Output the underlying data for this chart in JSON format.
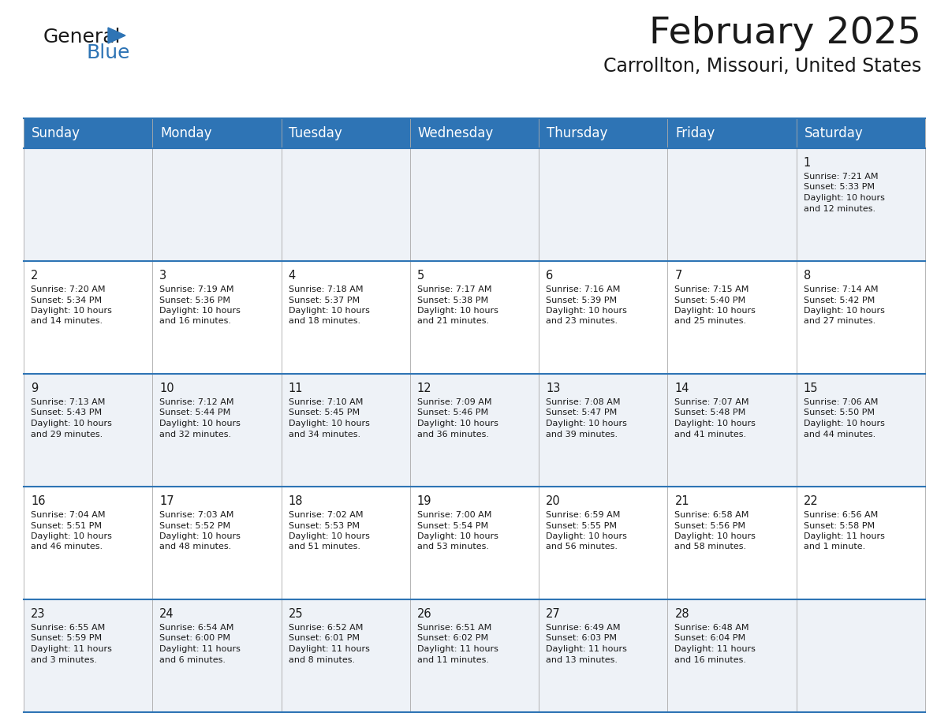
{
  "title": "February 2025",
  "subtitle": "Carrollton, Missouri, United States",
  "header_bg": "#2E74B5",
  "header_text_color": "#FFFFFF",
  "row_bg_odd": "#FFFFFF",
  "row_bg_even": "#EEF2F7",
  "border_color_dark": "#2E74B5",
  "border_color_light": "#AAAAAA",
  "text_color": "#1a1a1a",
  "logo_general_color": "#1a1a1a",
  "logo_blue_color": "#2E74B5",
  "day_headers": [
    "Sunday",
    "Monday",
    "Tuesday",
    "Wednesday",
    "Thursday",
    "Friday",
    "Saturday"
  ],
  "title_fontsize": 34,
  "subtitle_fontsize": 17,
  "header_fontsize": 12,
  "day_num_fontsize": 10.5,
  "cell_fontsize": 8.0,
  "days": [
    {
      "date": 1,
      "col": 6,
      "row": 0,
      "sunrise": "7:21 AM",
      "sunset": "5:33 PM",
      "daylight_h": "10 hours",
      "daylight_m": "and 12 minutes."
    },
    {
      "date": 2,
      "col": 0,
      "row": 1,
      "sunrise": "7:20 AM",
      "sunset": "5:34 PM",
      "daylight_h": "10 hours",
      "daylight_m": "and 14 minutes."
    },
    {
      "date": 3,
      "col": 1,
      "row": 1,
      "sunrise": "7:19 AM",
      "sunset": "5:36 PM",
      "daylight_h": "10 hours",
      "daylight_m": "and 16 minutes."
    },
    {
      "date": 4,
      "col": 2,
      "row": 1,
      "sunrise": "7:18 AM",
      "sunset": "5:37 PM",
      "daylight_h": "10 hours",
      "daylight_m": "and 18 minutes."
    },
    {
      "date": 5,
      "col": 3,
      "row": 1,
      "sunrise": "7:17 AM",
      "sunset": "5:38 PM",
      "daylight_h": "10 hours",
      "daylight_m": "and 21 minutes."
    },
    {
      "date": 6,
      "col": 4,
      "row": 1,
      "sunrise": "7:16 AM",
      "sunset": "5:39 PM",
      "daylight_h": "10 hours",
      "daylight_m": "and 23 minutes."
    },
    {
      "date": 7,
      "col": 5,
      "row": 1,
      "sunrise": "7:15 AM",
      "sunset": "5:40 PM",
      "daylight_h": "10 hours",
      "daylight_m": "and 25 minutes."
    },
    {
      "date": 8,
      "col": 6,
      "row": 1,
      "sunrise": "7:14 AM",
      "sunset": "5:42 PM",
      "daylight_h": "10 hours",
      "daylight_m": "and 27 minutes."
    },
    {
      "date": 9,
      "col": 0,
      "row": 2,
      "sunrise": "7:13 AM",
      "sunset": "5:43 PM",
      "daylight_h": "10 hours",
      "daylight_m": "and 29 minutes."
    },
    {
      "date": 10,
      "col": 1,
      "row": 2,
      "sunrise": "7:12 AM",
      "sunset": "5:44 PM",
      "daylight_h": "10 hours",
      "daylight_m": "and 32 minutes."
    },
    {
      "date": 11,
      "col": 2,
      "row": 2,
      "sunrise": "7:10 AM",
      "sunset": "5:45 PM",
      "daylight_h": "10 hours",
      "daylight_m": "and 34 minutes."
    },
    {
      "date": 12,
      "col": 3,
      "row": 2,
      "sunrise": "7:09 AM",
      "sunset": "5:46 PM",
      "daylight_h": "10 hours",
      "daylight_m": "and 36 minutes."
    },
    {
      "date": 13,
      "col": 4,
      "row": 2,
      "sunrise": "7:08 AM",
      "sunset": "5:47 PM",
      "daylight_h": "10 hours",
      "daylight_m": "and 39 minutes."
    },
    {
      "date": 14,
      "col": 5,
      "row": 2,
      "sunrise": "7:07 AM",
      "sunset": "5:48 PM",
      "daylight_h": "10 hours",
      "daylight_m": "and 41 minutes."
    },
    {
      "date": 15,
      "col": 6,
      "row": 2,
      "sunrise": "7:06 AM",
      "sunset": "5:50 PM",
      "daylight_h": "10 hours",
      "daylight_m": "and 44 minutes."
    },
    {
      "date": 16,
      "col": 0,
      "row": 3,
      "sunrise": "7:04 AM",
      "sunset": "5:51 PM",
      "daylight_h": "10 hours",
      "daylight_m": "and 46 minutes."
    },
    {
      "date": 17,
      "col": 1,
      "row": 3,
      "sunrise": "7:03 AM",
      "sunset": "5:52 PM",
      "daylight_h": "10 hours",
      "daylight_m": "and 48 minutes."
    },
    {
      "date": 18,
      "col": 2,
      "row": 3,
      "sunrise": "7:02 AM",
      "sunset": "5:53 PM",
      "daylight_h": "10 hours",
      "daylight_m": "and 51 minutes."
    },
    {
      "date": 19,
      "col": 3,
      "row": 3,
      "sunrise": "7:00 AM",
      "sunset": "5:54 PM",
      "daylight_h": "10 hours",
      "daylight_m": "and 53 minutes."
    },
    {
      "date": 20,
      "col": 4,
      "row": 3,
      "sunrise": "6:59 AM",
      "sunset": "5:55 PM",
      "daylight_h": "10 hours",
      "daylight_m": "and 56 minutes."
    },
    {
      "date": 21,
      "col": 5,
      "row": 3,
      "sunrise": "6:58 AM",
      "sunset": "5:56 PM",
      "daylight_h": "10 hours",
      "daylight_m": "and 58 minutes."
    },
    {
      "date": 22,
      "col": 6,
      "row": 3,
      "sunrise": "6:56 AM",
      "sunset": "5:58 PM",
      "daylight_h": "11 hours",
      "daylight_m": "and 1 minute."
    },
    {
      "date": 23,
      "col": 0,
      "row": 4,
      "sunrise": "6:55 AM",
      "sunset": "5:59 PM",
      "daylight_h": "11 hours",
      "daylight_m": "and 3 minutes."
    },
    {
      "date": 24,
      "col": 1,
      "row": 4,
      "sunrise": "6:54 AM",
      "sunset": "6:00 PM",
      "daylight_h": "11 hours",
      "daylight_m": "and 6 minutes."
    },
    {
      "date": 25,
      "col": 2,
      "row": 4,
      "sunrise": "6:52 AM",
      "sunset": "6:01 PM",
      "daylight_h": "11 hours",
      "daylight_m": "and 8 minutes."
    },
    {
      "date": 26,
      "col": 3,
      "row": 4,
      "sunrise": "6:51 AM",
      "sunset": "6:02 PM",
      "daylight_h": "11 hours",
      "daylight_m": "and 11 minutes."
    },
    {
      "date": 27,
      "col": 4,
      "row": 4,
      "sunrise": "6:49 AM",
      "sunset": "6:03 PM",
      "daylight_h": "11 hours",
      "daylight_m": "and 13 minutes."
    },
    {
      "date": 28,
      "col": 5,
      "row": 4,
      "sunrise": "6:48 AM",
      "sunset": "6:04 PM",
      "daylight_h": "11 hours",
      "daylight_m": "and 16 minutes."
    }
  ]
}
